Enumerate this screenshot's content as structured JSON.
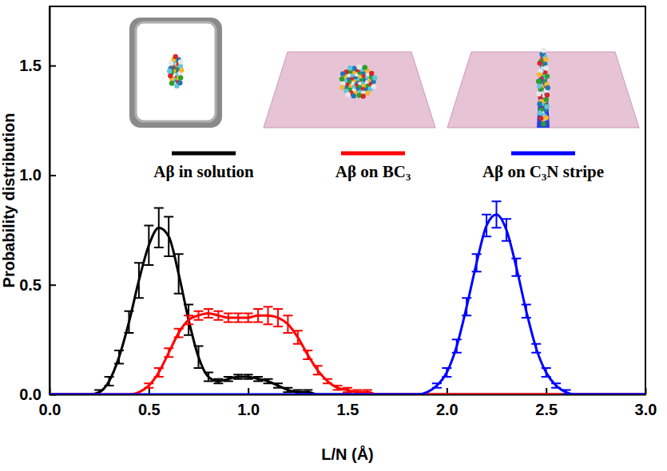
{
  "chart_data": {
    "type": "line",
    "x_label": "L/N (Å)",
    "y_label": "Probability distribution",
    "xlim": [
      0,
      3
    ],
    "ylim": [
      0,
      1.77
    ],
    "xticks": [
      {
        "value": 0,
        "label": "0.0"
      },
      {
        "value": 0.5,
        "label": "0.5"
      },
      {
        "value": 1,
        "label": "1.0"
      },
      {
        "value": 1.5,
        "label": "1.5"
      },
      {
        "value": 2,
        "label": "2.0"
      },
      {
        "value": 2.5,
        "label": "2.5"
      },
      {
        "value": 3,
        "label": "3.0"
      }
    ],
    "yticks": [
      {
        "value": 0,
        "label": "0.0"
      },
      {
        "value": 0.5,
        "label": "0.5"
      },
      {
        "value": 1,
        "label": "1.0"
      },
      {
        "value": 1.5,
        "label": "1.5"
      }
    ],
    "legend": "top",
    "x": [
      0,
      0.05,
      0.1,
      0.15,
      0.2,
      0.25,
      0.3,
      0.35,
      0.4,
      0.45,
      0.5,
      0.55,
      0.6,
      0.65,
      0.7,
      0.75,
      0.8,
      0.85,
      0.9,
      0.95,
      1,
      1.05,
      1.1,
      1.15,
      1.2,
      1.25,
      1.3,
      1.35,
      1.4,
      1.45,
      1.5,
      1.55,
      1.6,
      1.65,
      1.7,
      1.75,
      1.8,
      1.85,
      1.9,
      1.95,
      2,
      2.05,
      2.1,
      2.15,
      2.2,
      2.25,
      2.3,
      2.35,
      2.4,
      2.45,
      2.5,
      2.55,
      2.6,
      2.65,
      2.7,
      2.75,
      2.8,
      2.85,
      2.9,
      2.95,
      3
    ],
    "series": [
      {
        "name": "Aβ in solution",
        "color": "#000000",
        "line_style": "solid",
        "values": [
          0,
          0,
          0,
          0,
          0,
          0.01,
          0.06,
          0.17,
          0.33,
          0.52,
          0.68,
          0.76,
          0.72,
          0.55,
          0.34,
          0.17,
          0.08,
          0.06,
          0.07,
          0.08,
          0.08,
          0.07,
          0.06,
          0.04,
          0.02,
          0.01,
          0.01,
          0,
          0,
          0,
          0,
          0,
          0,
          0,
          0,
          0,
          0,
          0,
          0,
          0,
          0,
          0,
          0,
          0,
          0,
          0,
          0,
          0,
          0,
          0,
          0,
          0,
          0,
          0,
          0,
          0,
          0,
          0,
          0,
          0,
          0
        ],
        "errors": [
          0,
          0,
          0,
          0,
          0,
          0.01,
          0.02,
          0.03,
          0.05,
          0.08,
          0.09,
          0.09,
          0.09,
          0.09,
          0.07,
          0.05,
          0.02,
          0.01,
          0.01,
          0.01,
          0.01,
          0.01,
          0.01,
          0.01,
          0.01,
          0.01,
          0.01,
          0,
          0,
          0,
          0,
          0,
          0,
          0,
          0,
          0,
          0,
          0,
          0,
          0,
          0,
          0,
          0,
          0,
          0,
          0,
          0,
          0,
          0,
          0,
          0,
          0,
          0,
          0,
          0,
          0,
          0,
          0,
          0,
          0,
          0
        ]
      },
      {
        "name": "Aβ on BC₃",
        "color": "#ff0000",
        "line_style": "solid",
        "values": [
          0,
          0,
          0,
          0,
          0,
          0,
          0,
          0,
          0,
          0.01,
          0.04,
          0.1,
          0.19,
          0.28,
          0.34,
          0.36,
          0.37,
          0.36,
          0.35,
          0.35,
          0.35,
          0.36,
          0.36,
          0.35,
          0.32,
          0.26,
          0.18,
          0.11,
          0.06,
          0.03,
          0.02,
          0.01,
          0.01,
          0,
          0,
          0,
          0,
          0,
          0,
          0,
          0,
          0,
          0,
          0,
          0,
          0,
          0,
          0,
          0,
          0,
          0,
          0,
          0,
          0,
          0,
          0,
          0,
          0,
          0,
          0,
          0
        ],
        "errors": [
          0,
          0,
          0,
          0,
          0,
          0,
          0,
          0,
          0,
          0,
          0.01,
          0.02,
          0.02,
          0.02,
          0.02,
          0.02,
          0.02,
          0.02,
          0.02,
          0.02,
          0.02,
          0.03,
          0.04,
          0.04,
          0.04,
          0.03,
          0.02,
          0.02,
          0.01,
          0.01,
          0.01,
          0.01,
          0.01,
          0,
          0,
          0,
          0,
          0,
          0,
          0,
          0,
          0,
          0,
          0,
          0,
          0,
          0,
          0,
          0,
          0,
          0,
          0,
          0,
          0,
          0,
          0,
          0,
          0,
          0,
          0,
          0
        ]
      },
      {
        "name": "Aβ on C₃N stripe",
        "color": "#0000ff",
        "line_style": "solid",
        "values": [
          0,
          0,
          0,
          0,
          0,
          0,
          0,
          0,
          0,
          0,
          0,
          0,
          0,
          0,
          0,
          0,
          0,
          0,
          0,
          0,
          0,
          0,
          0,
          0,
          0,
          0,
          0,
          0,
          0,
          0,
          0,
          0,
          0,
          0,
          0,
          0,
          0,
          0,
          0.01,
          0.04,
          0.1,
          0.22,
          0.4,
          0.6,
          0.77,
          0.82,
          0.75,
          0.58,
          0.38,
          0.21,
          0.1,
          0.04,
          0.01,
          0,
          0,
          0,
          0,
          0,
          0,
          0,
          0
        ],
        "errors": [
          0,
          0,
          0,
          0,
          0,
          0,
          0,
          0,
          0,
          0,
          0,
          0,
          0,
          0,
          0,
          0,
          0,
          0,
          0,
          0,
          0,
          0,
          0,
          0,
          0,
          0,
          0,
          0,
          0,
          0,
          0,
          0,
          0,
          0,
          0,
          0,
          0,
          0,
          0,
          0.01,
          0.02,
          0.03,
          0.04,
          0.04,
          0.05,
          0.06,
          0.05,
          0.04,
          0.03,
          0.02,
          0.02,
          0.01,
          0.01,
          0,
          0,
          0,
          0,
          0,
          0,
          0,
          0
        ]
      }
    ]
  }
}
